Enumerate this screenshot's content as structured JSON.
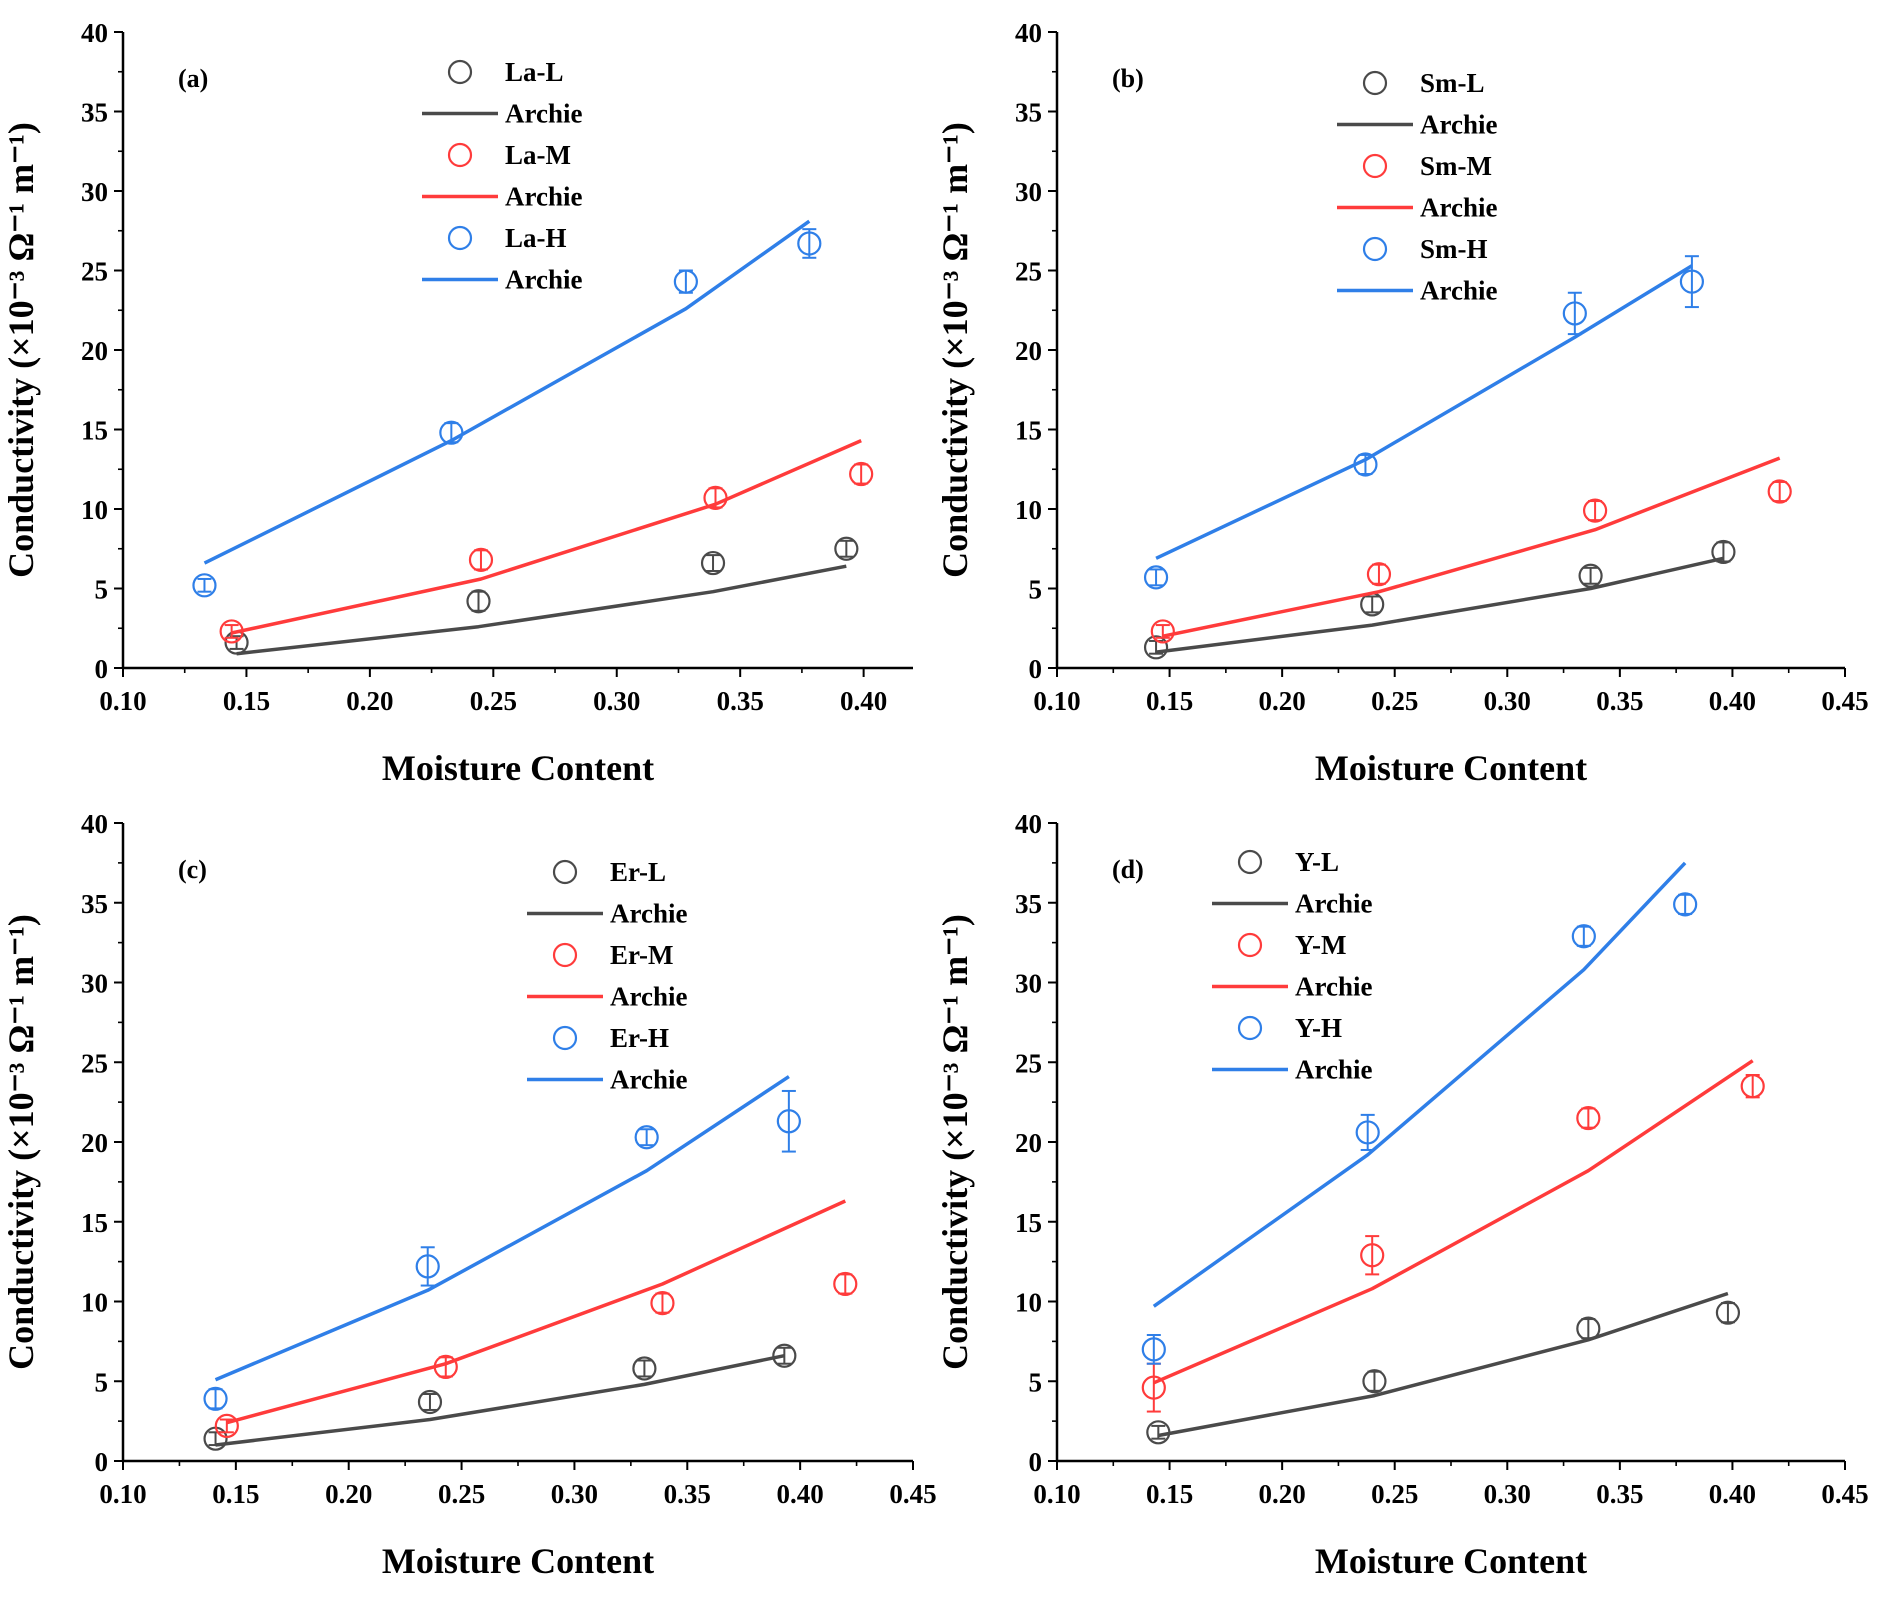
{
  "colors": {
    "L": "#4a4a4a",
    "M": "#ff3b3b",
    "H": "#2f7fe8"
  },
  "chart_data": [
    {
      "type": "scatter",
      "panel_label": "(a)",
      "xlabel": "Moisture Content",
      "ylabel": "Conductivity (×10⁻³ Ω⁻¹ m⁻¹)",
      "xlim": [
        0.1,
        0.42
      ],
      "ylim": [
        0,
        40
      ],
      "xticks": [
        "0.10",
        "0.15",
        "0.20",
        "0.25",
        "0.30",
        "0.35",
        "0.40"
      ],
      "yticks": [
        "0",
        "5",
        "10",
        "15",
        "20",
        "25",
        "30",
        "35",
        "40"
      ],
      "legend_position": "top-center",
      "series": [
        {
          "name": "La-L",
          "level": "L",
          "kind": "scatter",
          "points": [
            [
              0.146,
              1.6,
              0.4
            ],
            [
              0.244,
              4.2,
              0.6
            ],
            [
              0.339,
              6.6,
              0.5
            ],
            [
              0.393,
              7.5,
              0.5
            ]
          ]
        },
        {
          "name": "Archie",
          "level": "L",
          "kind": "line",
          "points": [
            [
              0.146,
              0.9
            ],
            [
              0.244,
              2.6
            ],
            [
              0.339,
              4.8
            ],
            [
              0.393,
              6.4
            ]
          ]
        },
        {
          "name": "La-M",
          "level": "M",
          "kind": "scatter",
          "points": [
            [
              0.144,
              2.3,
              0.4
            ],
            [
              0.245,
              6.8,
              0.6
            ],
            [
              0.34,
              10.7,
              0.6
            ],
            [
              0.399,
              12.2,
              0.6
            ]
          ]
        },
        {
          "name": "Archie",
          "level": "M",
          "kind": "line",
          "points": [
            [
              0.144,
              2.2
            ],
            [
              0.245,
              5.6
            ],
            [
              0.34,
              10.3
            ],
            [
              0.399,
              14.3
            ]
          ]
        },
        {
          "name": "La-H",
          "level": "H",
          "kind": "scatter",
          "points": [
            [
              0.133,
              5.2,
              0.4
            ],
            [
              0.233,
              14.8,
              0.6
            ],
            [
              0.328,
              24.3,
              0.7
            ],
            [
              0.378,
              26.7,
              0.9
            ]
          ]
        },
        {
          "name": "Archie",
          "level": "H",
          "kind": "line",
          "points": [
            [
              0.133,
              6.6
            ],
            [
              0.233,
              14.3
            ],
            [
              0.328,
              22.6
            ],
            [
              0.378,
              28.1
            ]
          ]
        }
      ]
    },
    {
      "type": "scatter",
      "panel_label": "(b)",
      "xlabel": "Moisture Content",
      "ylabel": "Conductivity (×10⁻³ Ω⁻¹ m⁻¹)",
      "xlim": [
        0.1,
        0.45
      ],
      "ylim": [
        0,
        40
      ],
      "xticks": [
        "0.10",
        "0.15",
        "0.20",
        "0.25",
        "0.30",
        "0.35",
        "0.40",
        "0.45"
      ],
      "yticks": [
        "0",
        "5",
        "10",
        "15",
        "20",
        "25",
        "30",
        "35",
        "40"
      ],
      "legend_position": "top-center",
      "series": [
        {
          "name": "Sm-L",
          "level": "L",
          "kind": "scatter",
          "points": [
            [
              0.144,
              1.3,
              0.4
            ],
            [
              0.24,
              4.0,
              0.5
            ],
            [
              0.337,
              5.8,
              0.5
            ],
            [
              0.396,
              7.3,
              0.6
            ]
          ]
        },
        {
          "name": "Archie",
          "level": "L",
          "kind": "line",
          "points": [
            [
              0.144,
              1.0
            ],
            [
              0.24,
              2.7
            ],
            [
              0.337,
              5.0
            ],
            [
              0.396,
              6.9
            ]
          ]
        },
        {
          "name": "Sm-M",
          "level": "M",
          "kind": "scatter",
          "points": [
            [
              0.147,
              2.3,
              0.4
            ],
            [
              0.243,
              5.9,
              0.6
            ],
            [
              0.339,
              9.9,
              0.6
            ],
            [
              0.421,
              11.1,
              0.6
            ]
          ]
        },
        {
          "name": "Archie",
          "level": "M",
          "kind": "line",
          "points": [
            [
              0.147,
              2.0
            ],
            [
              0.243,
              4.8
            ],
            [
              0.339,
              8.7
            ],
            [
              0.421,
              13.2
            ]
          ]
        },
        {
          "name": "Sm-H",
          "level": "H",
          "kind": "scatter",
          "points": [
            [
              0.144,
              5.7,
              0.5
            ],
            [
              0.237,
              12.8,
              0.6
            ],
            [
              0.33,
              22.3,
              1.3
            ],
            [
              0.382,
              24.3,
              1.6
            ]
          ]
        },
        {
          "name": "Archie",
          "level": "H",
          "kind": "line",
          "points": [
            [
              0.144,
              6.9
            ],
            [
              0.237,
              13.1
            ],
            [
              0.33,
              20.8
            ],
            [
              0.382,
              25.3
            ]
          ]
        }
      ]
    },
    {
      "type": "scatter",
      "panel_label": "(c)",
      "xlabel": "Moisture Content",
      "ylabel": "Conductivity (×10⁻³ Ω⁻¹ m⁻¹)",
      "xlim": [
        0.1,
        0.45
      ],
      "ylim": [
        0,
        40
      ],
      "xticks": [
        "0.10",
        "0.15",
        "0.20",
        "0.25",
        "0.30",
        "0.35",
        "0.40",
        "0.45"
      ],
      "yticks": [
        "0",
        "5",
        "10",
        "15",
        "20",
        "25",
        "30",
        "35",
        "40"
      ],
      "legend_position": "top-right",
      "series": [
        {
          "name": "Er-L",
          "level": "L",
          "kind": "scatter",
          "points": [
            [
              0.141,
              1.4,
              0.4
            ],
            [
              0.236,
              3.7,
              0.5
            ],
            [
              0.331,
              5.8,
              0.5
            ],
            [
              0.393,
              6.6,
              0.5
            ]
          ]
        },
        {
          "name": "Archie",
          "level": "L",
          "kind": "line",
          "points": [
            [
              0.141,
              1.0
            ],
            [
              0.236,
              2.6
            ],
            [
              0.331,
              4.8
            ],
            [
              0.393,
              6.6
            ]
          ]
        },
        {
          "name": "Er-M",
          "level": "M",
          "kind": "scatter",
          "points": [
            [
              0.146,
              2.2,
              0.4
            ],
            [
              0.243,
              5.9,
              0.6
            ],
            [
              0.339,
              9.9,
              0.6
            ],
            [
              0.42,
              11.1,
              0.6
            ]
          ]
        },
        {
          "name": "Archie",
          "level": "M",
          "kind": "line",
          "points": [
            [
              0.146,
              2.4
            ],
            [
              0.243,
              6.1
            ],
            [
              0.339,
              11.1
            ],
            [
              0.42,
              16.3
            ]
          ]
        },
        {
          "name": "Er-H",
          "level": "H",
          "kind": "scatter",
          "points": [
            [
              0.141,
              3.9,
              0.6
            ],
            [
              0.235,
              12.2,
              1.2
            ],
            [
              0.332,
              20.3,
              0.5
            ],
            [
              0.395,
              21.3,
              1.9
            ]
          ]
        },
        {
          "name": "Archie",
          "level": "H",
          "kind": "line",
          "points": [
            [
              0.141,
              5.1
            ],
            [
              0.235,
              10.7
            ],
            [
              0.332,
              18.2
            ],
            [
              0.395,
              24.1
            ]
          ]
        }
      ]
    },
    {
      "type": "scatter",
      "panel_label": "(d)",
      "xlabel": "Moisture Content",
      "ylabel": "Conductivity (×10⁻³ Ω⁻¹ m⁻¹)",
      "xlim": [
        0.1,
        0.45
      ],
      "ylim": [
        0,
        40
      ],
      "xticks": [
        "0.10",
        "0.15",
        "0.20",
        "0.25",
        "0.30",
        "0.35",
        "0.40",
        "0.45"
      ],
      "yticks": [
        "0",
        "5",
        "10",
        "15",
        "20",
        "25",
        "30",
        "35",
        "40"
      ],
      "legend_position": "top-left",
      "series": [
        {
          "name": "Y-L",
          "level": "L",
          "kind": "scatter",
          "points": [
            [
              0.145,
              1.8,
              0.4
            ],
            [
              0.241,
              5.0,
              0.6
            ],
            [
              0.336,
              8.3,
              0.6
            ],
            [
              0.398,
              9.3,
              0.6
            ]
          ]
        },
        {
          "name": "Archie",
          "level": "L",
          "kind": "line",
          "points": [
            [
              0.145,
              1.6
            ],
            [
              0.241,
              4.1
            ],
            [
              0.336,
              7.6
            ],
            [
              0.398,
              10.5
            ]
          ]
        },
        {
          "name": "Y-M",
          "level": "M",
          "kind": "scatter",
          "points": [
            [
              0.143,
              4.6,
              1.5
            ],
            [
              0.24,
              12.9,
              1.2
            ],
            [
              0.336,
              21.5,
              0.6
            ],
            [
              0.409,
              23.5,
              0.7
            ]
          ]
        },
        {
          "name": "Archie",
          "level": "M",
          "kind": "line",
          "points": [
            [
              0.143,
              4.9
            ],
            [
              0.24,
              10.8
            ],
            [
              0.336,
              18.2
            ],
            [
              0.409,
              25.1
            ]
          ]
        },
        {
          "name": "Y-H",
          "level": "H",
          "kind": "scatter",
          "points": [
            [
              0.143,
              7.0,
              0.9
            ],
            [
              0.238,
              20.6,
              1.1
            ],
            [
              0.334,
              32.9,
              0.6
            ],
            [
              0.379,
              34.9,
              0.6
            ]
          ]
        },
        {
          "name": "Archie",
          "level": "H",
          "kind": "line",
          "points": [
            [
              0.143,
              9.7
            ],
            [
              0.238,
              19.2
            ],
            [
              0.334,
              30.8
            ],
            [
              0.379,
              37.5
            ]
          ]
        }
      ]
    }
  ]
}
